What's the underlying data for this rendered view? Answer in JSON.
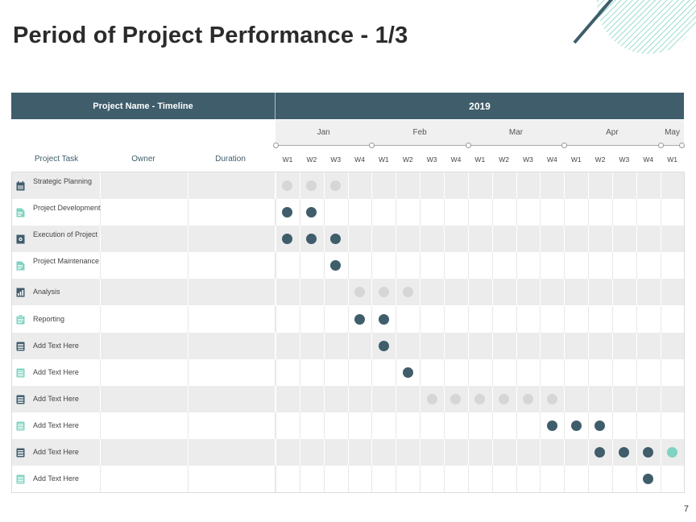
{
  "title": "Period of Project Performance - 1/3",
  "page_number": "7",
  "header": {
    "left_label": "Project Name - Timeline",
    "year": "2019"
  },
  "months": [
    "Jan",
    "Feb",
    "Mar",
    "Apr",
    "May"
  ],
  "columns": {
    "task": "Project Task",
    "owner": "Owner",
    "duration": "Duration"
  },
  "weeks": [
    "W1",
    "W2",
    "W3",
    "W4",
    "W1",
    "W2",
    "W3",
    "W4",
    "W1",
    "W2",
    "W3",
    "W4",
    "W1",
    "W2",
    "W3",
    "W4",
    "W1"
  ],
  "colors": {
    "dark": "#3f5d6b",
    "light": "#d6d6d6",
    "teal": "#7fd3c1",
    "icon_dark": "#3f5d6b",
    "icon_teal": "#7fd3c1"
  },
  "tasks": [
    {
      "label": "Strategic Planning",
      "icon": "calendar-icon",
      "icon_color": "icon_dark",
      "dots": [
        [
          0,
          "light"
        ],
        [
          1,
          "light"
        ],
        [
          2,
          "light"
        ]
      ]
    },
    {
      "label": "Project Development",
      "icon": "document-edit-icon",
      "icon_color": "icon_teal",
      "dots": [
        [
          0,
          "dark"
        ],
        [
          1,
          "dark"
        ]
      ]
    },
    {
      "label": "Execution of Project",
      "icon": "gear-document-icon",
      "icon_color": "icon_dark",
      "dots": [
        [
          0,
          "dark"
        ],
        [
          1,
          "dark"
        ],
        [
          2,
          "dark"
        ]
      ]
    },
    {
      "label": "Project Maintenance",
      "icon": "document-tools-icon",
      "icon_color": "icon_teal",
      "dots": [
        [
          2,
          "dark"
        ]
      ]
    },
    {
      "label": "Analysis",
      "icon": "chart-document-icon",
      "icon_color": "icon_dark",
      "dots": [
        [
          3,
          "light"
        ],
        [
          4,
          "light"
        ],
        [
          5,
          "light"
        ]
      ]
    },
    {
      "label": "Reporting",
      "icon": "clipboard-icon",
      "icon_color": "icon_teal",
      "dots": [
        [
          3,
          "dark"
        ],
        [
          4,
          "dark"
        ]
      ]
    },
    {
      "label": "Add Text Here",
      "icon": "notepad-icon",
      "icon_color": "icon_dark",
      "dots": [
        [
          4,
          "dark"
        ]
      ]
    },
    {
      "label": "Add Text Here",
      "icon": "notepad-icon",
      "icon_color": "icon_teal",
      "dots": [
        [
          5,
          "dark"
        ]
      ]
    },
    {
      "label": "Add Text Here",
      "icon": "notepad-icon",
      "icon_color": "icon_dark",
      "dots": [
        [
          6,
          "light"
        ],
        [
          7,
          "light"
        ],
        [
          8,
          "light"
        ],
        [
          9,
          "light"
        ],
        [
          10,
          "light"
        ],
        [
          11,
          "light"
        ]
      ]
    },
    {
      "label": "Add Text Here",
      "icon": "notepad-icon",
      "icon_color": "icon_teal",
      "dots": [
        [
          11,
          "dark"
        ],
        [
          12,
          "dark"
        ],
        [
          13,
          "dark"
        ]
      ]
    },
    {
      "label": "Add Text Here",
      "icon": "notepad-icon",
      "icon_color": "icon_dark",
      "dots": [
        [
          13,
          "dark"
        ],
        [
          14,
          "dark"
        ],
        [
          15,
          "dark"
        ],
        [
          16,
          "teal"
        ]
      ]
    },
    {
      "label": "Add Text Here",
      "icon": "notepad-icon",
      "icon_color": "icon_teal",
      "dots": [
        [
          15,
          "dark"
        ]
      ]
    }
  ]
}
